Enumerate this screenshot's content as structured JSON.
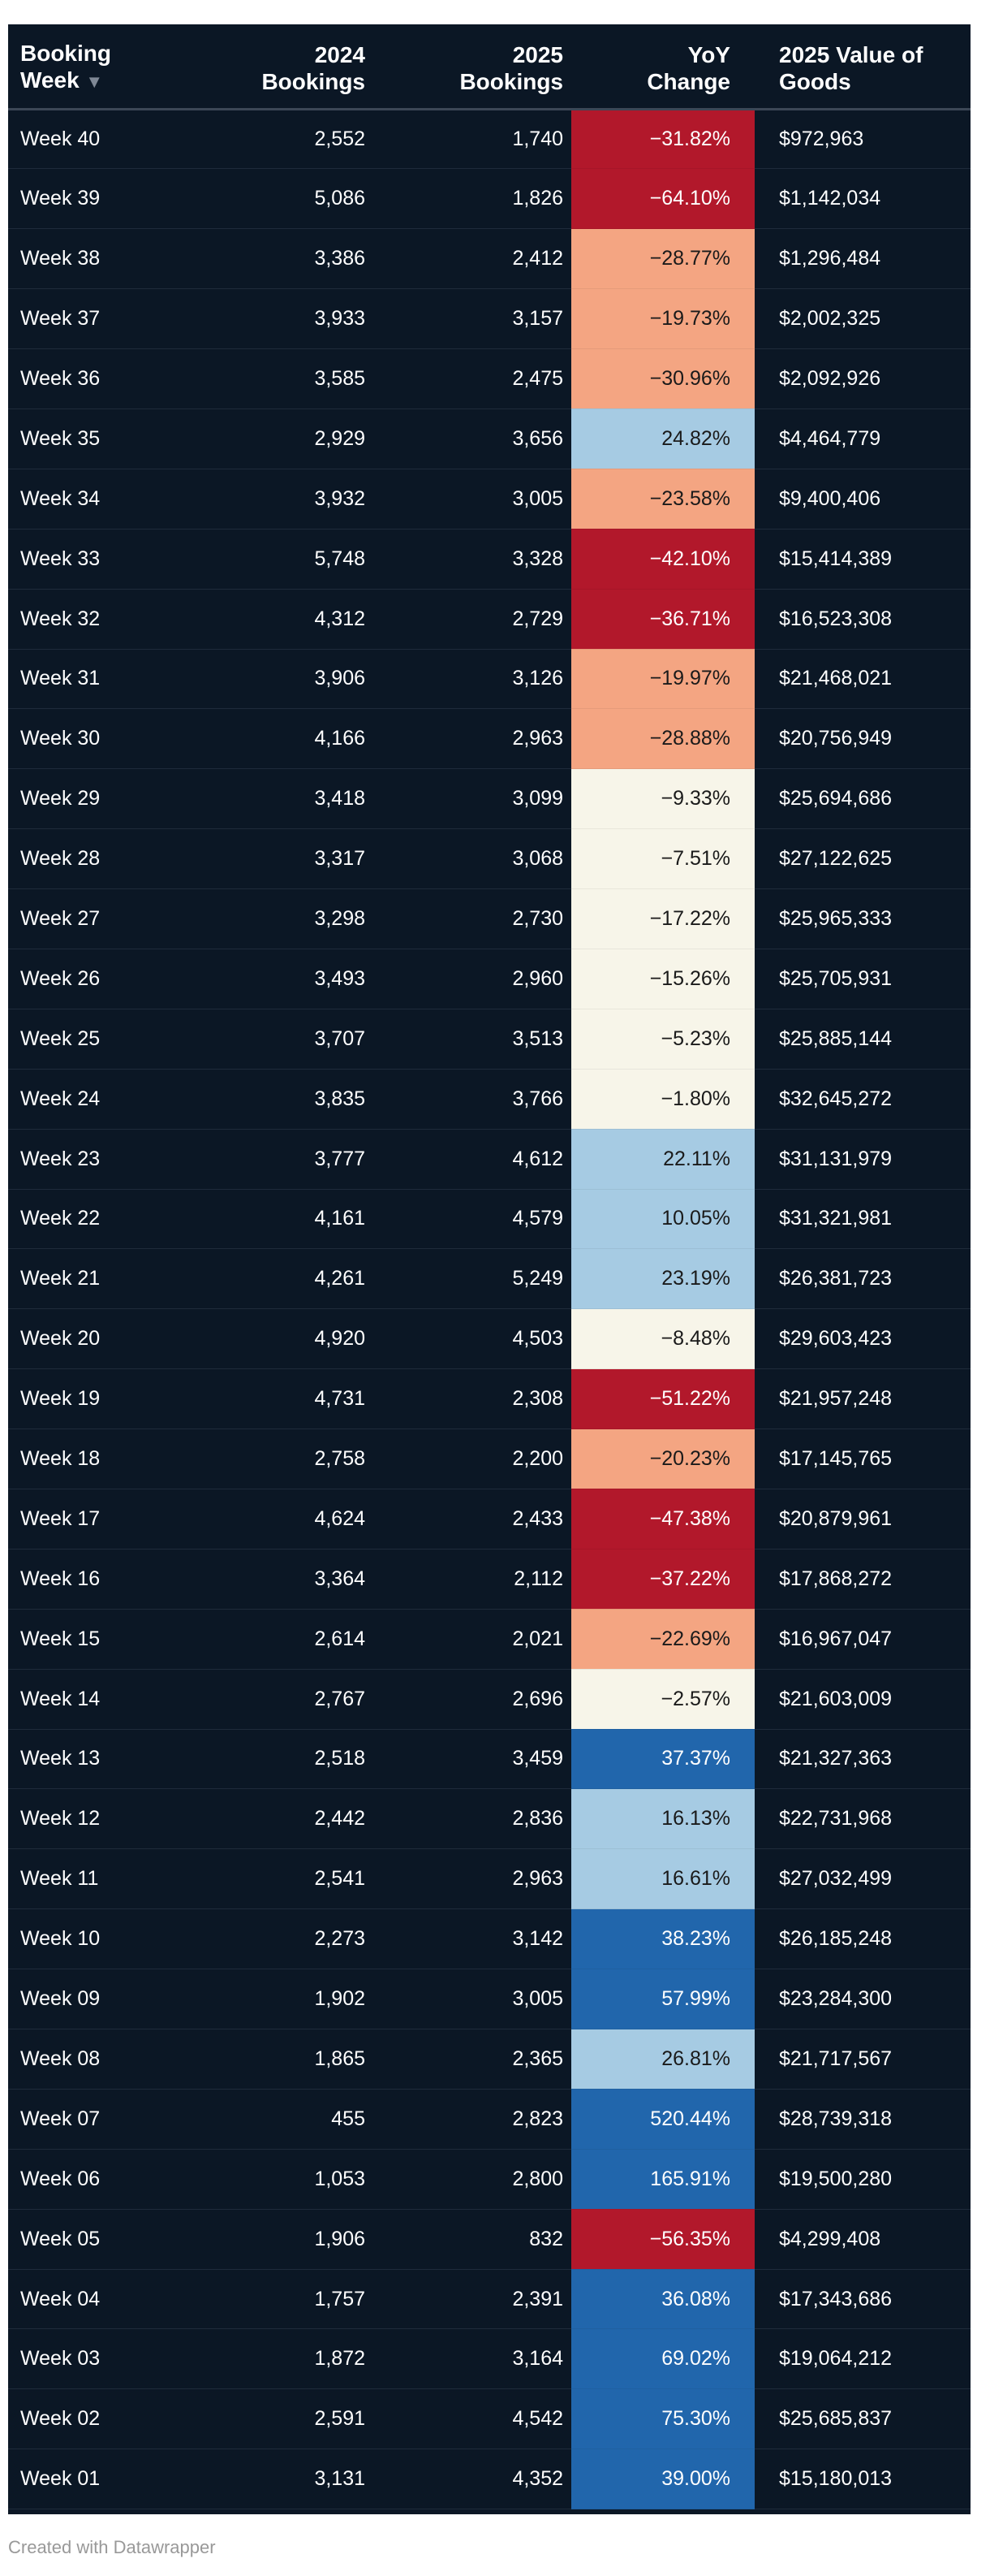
{
  "chart_data": {
    "type": "table",
    "columns": [
      {
        "label_line1": "Booking",
        "label_line2": "Week",
        "sortable": true
      },
      {
        "label_line1": "2024",
        "label_line2": "Bookings"
      },
      {
        "label_line1": "2025",
        "label_line2": "Bookings"
      },
      {
        "label_line1": "YoY",
        "label_line2": "Change"
      },
      {
        "label_line1": "2025 Value of",
        "label_line2": "Goods"
      }
    ],
    "sort_indicator": "▼",
    "rows": [
      {
        "week": "Week 40",
        "b2024": "2,552",
        "b2025": "1,740",
        "yoy": "−31.82%",
        "value": "$972,963",
        "yoy_num": -31.82
      },
      {
        "week": "Week 39",
        "b2024": "5,086",
        "b2025": "1,826",
        "yoy": "−64.10%",
        "value": "$1,142,034",
        "yoy_num": -64.1
      },
      {
        "week": "Week 38",
        "b2024": "3,386",
        "b2025": "2,412",
        "yoy": "−28.77%",
        "value": "$1,296,484",
        "yoy_num": -28.77
      },
      {
        "week": "Week 37",
        "b2024": "3,933",
        "b2025": "3,157",
        "yoy": "−19.73%",
        "value": "$2,002,325",
        "yoy_num": -19.73
      },
      {
        "week": "Week 36",
        "b2024": "3,585",
        "b2025": "2,475",
        "yoy": "−30.96%",
        "value": "$2,092,926",
        "yoy_num": -30.96
      },
      {
        "week": "Week 35",
        "b2024": "2,929",
        "b2025": "3,656",
        "yoy": "24.82%",
        "value": "$4,464,779",
        "yoy_num": 24.82
      },
      {
        "week": "Week 34",
        "b2024": "3,932",
        "b2025": "3,005",
        "yoy": "−23.58%",
        "value": "$9,400,406",
        "yoy_num": -23.58
      },
      {
        "week": "Week 33",
        "b2024": "5,748",
        "b2025": "3,328",
        "yoy": "−42.10%",
        "value": "$15,414,389",
        "yoy_num": -42.1
      },
      {
        "week": "Week 32",
        "b2024": "4,312",
        "b2025": "2,729",
        "yoy": "−36.71%",
        "value": "$16,523,308",
        "yoy_num": -36.71
      },
      {
        "week": "Week 31",
        "b2024": "3,906",
        "b2025": "3,126",
        "yoy": "−19.97%",
        "value": "$21,468,021",
        "yoy_num": -19.97
      },
      {
        "week": "Week 30",
        "b2024": "4,166",
        "b2025": "2,963",
        "yoy": "−28.88%",
        "value": "$20,756,949",
        "yoy_num": -28.88
      },
      {
        "week": "Week 29",
        "b2024": "3,418",
        "b2025": "3,099",
        "yoy": "−9.33%",
        "value": "$25,694,686",
        "yoy_num": -9.33
      },
      {
        "week": "Week 28",
        "b2024": "3,317",
        "b2025": "3,068",
        "yoy": "−7.51%",
        "value": "$27,122,625",
        "yoy_num": -7.51
      },
      {
        "week": "Week 27",
        "b2024": "3,298",
        "b2025": "2,730",
        "yoy": "−17.22%",
        "value": "$25,965,333",
        "yoy_num": -17.22
      },
      {
        "week": "Week 26",
        "b2024": "3,493",
        "b2025": "2,960",
        "yoy": "−15.26%",
        "value": "$25,705,931",
        "yoy_num": -15.26
      },
      {
        "week": "Week 25",
        "b2024": "3,707",
        "b2025": "3,513",
        "yoy": "−5.23%",
        "value": "$25,885,144",
        "yoy_num": -5.23
      },
      {
        "week": "Week 24",
        "b2024": "3,835",
        "b2025": "3,766",
        "yoy": "−1.80%",
        "value": "$32,645,272",
        "yoy_num": -1.8
      },
      {
        "week": "Week 23",
        "b2024": "3,777",
        "b2025": "4,612",
        "yoy": "22.11%",
        "value": "$31,131,979",
        "yoy_num": 22.11
      },
      {
        "week": "Week 22",
        "b2024": "4,161",
        "b2025": "4,579",
        "yoy": "10.05%",
        "value": "$31,321,981",
        "yoy_num": 10.05
      },
      {
        "week": "Week 21",
        "b2024": "4,261",
        "b2025": "5,249",
        "yoy": "23.19%",
        "value": "$26,381,723",
        "yoy_num": 23.19
      },
      {
        "week": "Week 20",
        "b2024": "4,920",
        "b2025": "4,503",
        "yoy": "−8.48%",
        "value": "$29,603,423",
        "yoy_num": -8.48
      },
      {
        "week": "Week 19",
        "b2024": "4,731",
        "b2025": "2,308",
        "yoy": "−51.22%",
        "value": "$21,957,248",
        "yoy_num": -51.22
      },
      {
        "week": "Week 18",
        "b2024": "2,758",
        "b2025": "2,200",
        "yoy": "−20.23%",
        "value": "$17,145,765",
        "yoy_num": -20.23
      },
      {
        "week": "Week 17",
        "b2024": "4,624",
        "b2025": "2,433",
        "yoy": "−47.38%",
        "value": "$20,879,961",
        "yoy_num": -47.38
      },
      {
        "week": "Week 16",
        "b2024": "3,364",
        "b2025": "2,112",
        "yoy": "−37.22%",
        "value": "$17,868,272",
        "yoy_num": -37.22
      },
      {
        "week": "Week 15",
        "b2024": "2,614",
        "b2025": "2,021",
        "yoy": "−22.69%",
        "value": "$16,967,047",
        "yoy_num": -22.69
      },
      {
        "week": "Week 14",
        "b2024": "2,767",
        "b2025": "2,696",
        "yoy": "−2.57%",
        "value": "$21,603,009",
        "yoy_num": -2.57
      },
      {
        "week": "Week 13",
        "b2024": "2,518",
        "b2025": "3,459",
        "yoy": "37.37%",
        "value": "$21,327,363",
        "yoy_num": 37.37
      },
      {
        "week": "Week 12",
        "b2024": "2,442",
        "b2025": "2,836",
        "yoy": "16.13%",
        "value": "$22,731,968",
        "yoy_num": 16.13
      },
      {
        "week": "Week 11",
        "b2024": "2,541",
        "b2025": "2,963",
        "yoy": "16.61%",
        "value": "$27,032,499",
        "yoy_num": 16.61
      },
      {
        "week": "Week 10",
        "b2024": "2,273",
        "b2025": "3,142",
        "yoy": "38.23%",
        "value": "$26,185,248",
        "yoy_num": 38.23
      },
      {
        "week": "Week 09",
        "b2024": "1,902",
        "b2025": "3,005",
        "yoy": "57.99%",
        "value": "$23,284,300",
        "yoy_num": 57.99
      },
      {
        "week": "Week 08",
        "b2024": "1,865",
        "b2025": "2,365",
        "yoy": "26.81%",
        "value": "$21,717,567",
        "yoy_num": 26.81
      },
      {
        "week": "Week 07",
        "b2024": "455",
        "b2025": "2,823",
        "yoy": "520.44%",
        "value": "$28,739,318",
        "yoy_num": 520.44
      },
      {
        "week": "Week 06",
        "b2024": "1,053",
        "b2025": "2,800",
        "yoy": "165.91%",
        "value": "$19,500,280",
        "yoy_num": 165.91
      },
      {
        "week": "Week 05",
        "b2024": "1,906",
        "b2025": "832",
        "yoy": "−56.35%",
        "value": "$4,299,408",
        "yoy_num": -56.35
      },
      {
        "week": "Week 04",
        "b2024": "1,757",
        "b2025": "2,391",
        "yoy": "36.08%",
        "value": "$17,343,686",
        "yoy_num": 36.08
      },
      {
        "week": "Week 03",
        "b2024": "1,872",
        "b2025": "3,164",
        "yoy": "69.02%",
        "value": "$19,064,212",
        "yoy_num": 69.02
      },
      {
        "week": "Week 02",
        "b2024": "2,591",
        "b2025": "4,542",
        "yoy": "75.30%",
        "value": "$25,685,837",
        "yoy_num": 75.3
      },
      {
        "week": "Week 01",
        "b2024": "3,131",
        "b2025": "4,352",
        "yoy": "39.00%",
        "value": "$15,180,013",
        "yoy_num": 39.0
      }
    ],
    "heatmap_column": "yoy_num",
    "color_scale": [
      {
        "max": -31.5,
        "color": "#b2182b",
        "text": "#ffffff"
      },
      {
        "max": -18.0,
        "color": "#f4a582",
        "text": "#1a1a1a"
      },
      {
        "max": 0,
        "color": "#f7f5e9",
        "text": "#1a1a1a"
      },
      {
        "max": 35,
        "color": "#a6cbe3",
        "text": "#1a1a1a"
      },
      {
        "max": 100000,
        "color": "#2166ac",
        "text": "#ffffff"
      }
    ]
  },
  "footer": {
    "credit": "Created with Datawrapper"
  }
}
